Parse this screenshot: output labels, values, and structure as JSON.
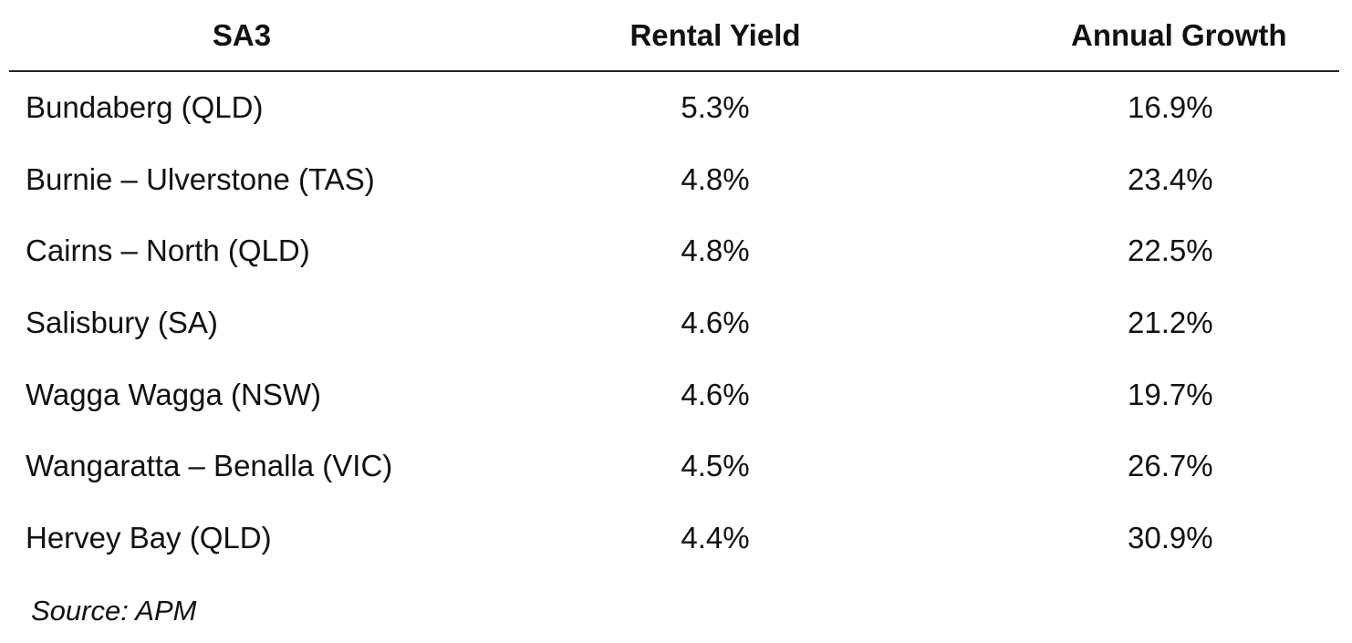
{
  "table": {
    "headers": {
      "area": "SA3",
      "yield": "Rental Yield",
      "growth": "Annual Growth"
    },
    "rows": [
      {
        "area": "Bundaberg (QLD)",
        "yield": "5.3%",
        "growth": "16.9%"
      },
      {
        "area": "Burnie – Ulverstone (TAS)",
        "yield": "4.8%",
        "growth": "23.4%"
      },
      {
        "area": "Cairns – North (QLD)",
        "yield": "4.8%",
        "growth": "22.5%"
      },
      {
        "area": "Salisbury (SA)",
        "yield": "4.6%",
        "growth": "21.2%"
      },
      {
        "area": "Wagga Wagga (NSW)",
        "yield": "4.6%",
        "growth": "19.7%"
      },
      {
        "area": "Wangaratta – Benalla (VIC)",
        "yield": "4.5%",
        "growth": "26.7%"
      },
      {
        "area": "Hervey Bay (QLD)",
        "yield": "4.4%",
        "growth": "30.9%"
      }
    ]
  },
  "source": "Source: APM"
}
